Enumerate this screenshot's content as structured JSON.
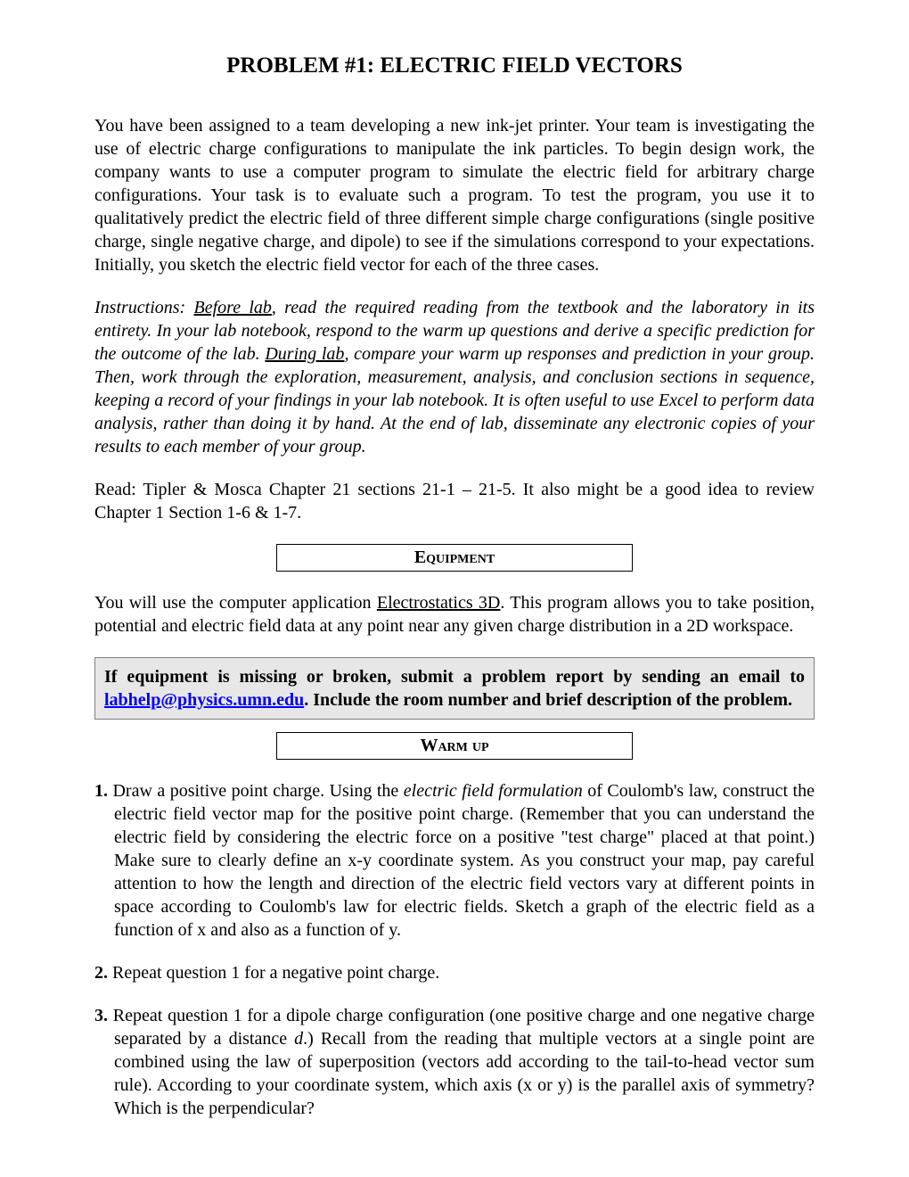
{
  "title": "PROBLEM #1: ELECTRIC FIELD VECTORS",
  "intro": "You have been assigned to a team developing a new ink-jet printer. Your team is investigating the use of electric charge configurations to manipulate the ink particles.  To begin design work, the company wants to use a computer program to simulate the electric field for arbitrary charge configurations. Your task is to evaluate such a program.  To test the program, you use it to qualitatively predict the electric field of three different simple charge configurations (single positive charge, single negative charge, and dipole) to see if the simulations correspond to your expectations.  Initially, you sketch the electric field vector for each of the three cases.",
  "instructions": {
    "label": "Instructions: ",
    "before_lab": "Before lab",
    "part1": ", read the required reading from the textbook and the laboratory in its entirety. In your lab notebook, respond to the warm up questions and derive a specific prediction for the outcome of the lab. ",
    "during_lab": "During lab",
    "part2": ", compare your warm up responses and prediction in your group. Then, work through the exploration, measurement, analysis, and conclusion sections in sequence, keeping a record of your findings in your lab notebook. It is often useful to use Excel to perform data analysis, rather than doing it by hand.  At the end of lab, disseminate any electronic copies of your results to each member of your group."
  },
  "reading": "Read: Tipler & Mosca Chapter 21 sections 21-1 – 21-5.  It also might be a good idea to review Chapter 1 Section 1-6 & 1-7.",
  "equipment_heading": "Equipment",
  "equipment_text": {
    "part1": "You will use the computer application ",
    "app_name": "Electrostatics 3D",
    "part2": ". This program allows you to take position, potential and electric field data at any point near any given charge distribution in a 2D workspace."
  },
  "equipment_box": {
    "part1": "If equipment is missing or broken, submit a problem report by sending an email to ",
    "email": "labhelp@physics.umn.edu",
    "part2": ".   Include the room number and brief description of the problem."
  },
  "warmup_heading": "Warm up",
  "warmup": {
    "item1": {
      "num": "1.",
      "part1": " Draw a positive point charge.  Using the ",
      "italic": "electric field formulation",
      "part2": " of Coulomb's law, construct the electric field vector map for the positive point charge. (Remember that you can understand the electric field by considering the electric force on a positive \"test charge\" placed at that point.) Make sure to clearly define an x-y coordinate system. As you construct your map, pay careful attention to how the length and direction of the electric field vectors vary at different points in space according to Coulomb's law for electric fields.  Sketch a graph of the electric field as a function of x and also as a function of y."
    },
    "item2": {
      "num": "2.",
      "text": " Repeat question 1 for a negative point charge."
    },
    "item3": {
      "num": "3.",
      "part1": " Repeat question 1 for a dipole charge configuration (one positive charge and one negative charge separated by a distance ",
      "italic": "d",
      "part2": ".) Recall from the reading that multiple vectors at a single point are combined using the law of superposition (vectors add according to the tail-to-head vector sum rule). According to your coordinate system, which axis (x or y) is the parallel axis of symmetry? Which is the perpendicular?"
    }
  }
}
